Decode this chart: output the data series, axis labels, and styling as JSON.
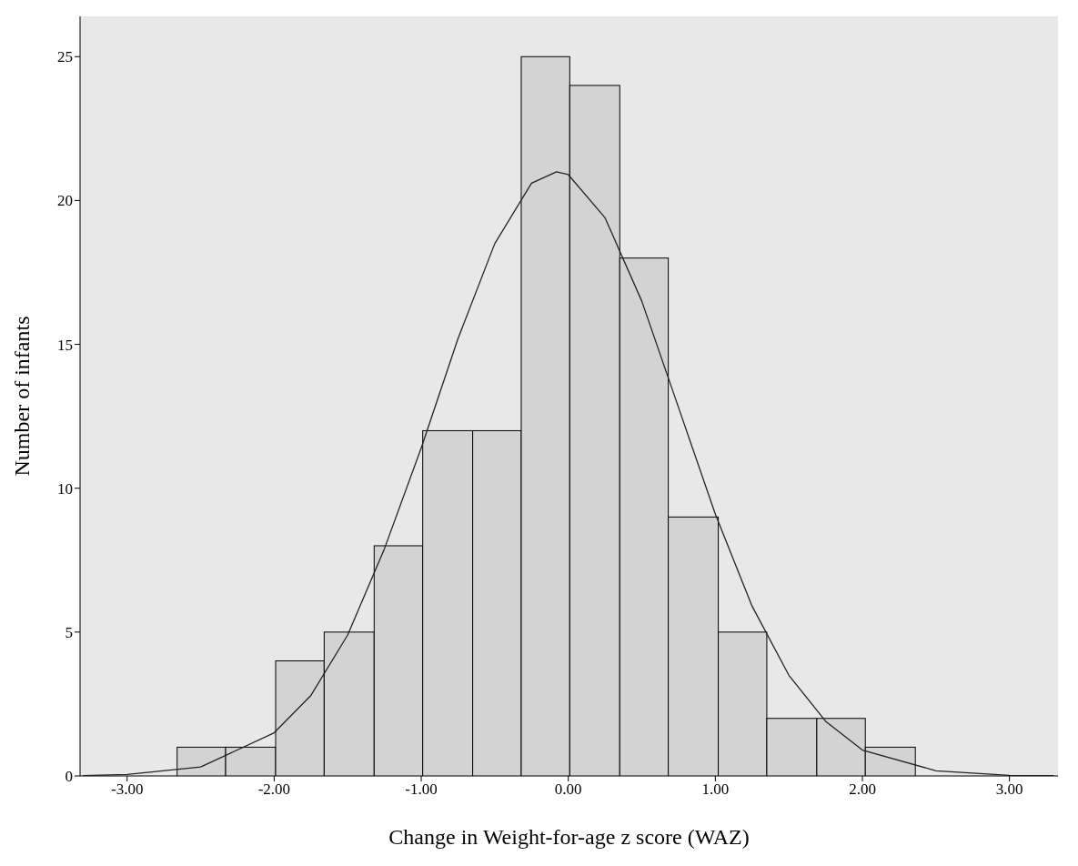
{
  "chart_data": {
    "type": "histogram",
    "xlabel": "Change in Weight-for-age z score (WAZ)",
    "ylabel": "Number of infants",
    "bins": [
      -2.66,
      -2.33,
      -1.99,
      -1.66,
      -1.32,
      -0.99,
      -0.65,
      -0.32,
      0.01,
      0.35,
      0.68,
      1.02,
      1.35,
      1.69,
      2.02,
      2.36
    ],
    "values": [
      1,
      1,
      4,
      5,
      8,
      12,
      12,
      25,
      24,
      18,
      9,
      5,
      2,
      2,
      1
    ],
    "color": "#d3d3d3",
    "xlim": [
      -3.32,
      3.33
    ],
    "xticks": [
      {
        "value": -3,
        "label": "-3.00"
      },
      {
        "value": -2,
        "label": "-2.00"
      },
      {
        "value": -1,
        "label": "-1.00"
      },
      {
        "value": 0,
        "label": "0.00"
      },
      {
        "value": 1,
        "label": "1.00"
      },
      {
        "value": 2,
        "label": "2.00"
      },
      {
        "value": 3,
        "label": "3.00"
      }
    ],
    "ylim": [
      0,
      26.4
    ],
    "yticks": [
      0,
      5,
      10,
      15,
      20,
      25
    ],
    "series": [
      {
        "type": "line",
        "color": "#222222",
        "x": [
          -3.3,
          -3,
          -2.5,
          -2,
          -1.75,
          -1.5,
          -1.25,
          -1,
          -0.75,
          -0.5,
          -0.25,
          -0.08,
          0,
          0.25,
          0.5,
          0.75,
          1,
          1.25,
          1.5,
          1.75,
          2,
          2.5,
          3,
          3.3
        ],
        "values": [
          0.01,
          0.05,
          0.31,
          1.5,
          2.8,
          4.9,
          7.9,
          11.4,
          15.2,
          18.5,
          20.6,
          21,
          20.9,
          19.4,
          16.5,
          12.8,
          9.1,
          5.9,
          3.5,
          1.9,
          0.9,
          0.18,
          0.02,
          0.01
        ]
      }
    ],
    "grid": false
  }
}
